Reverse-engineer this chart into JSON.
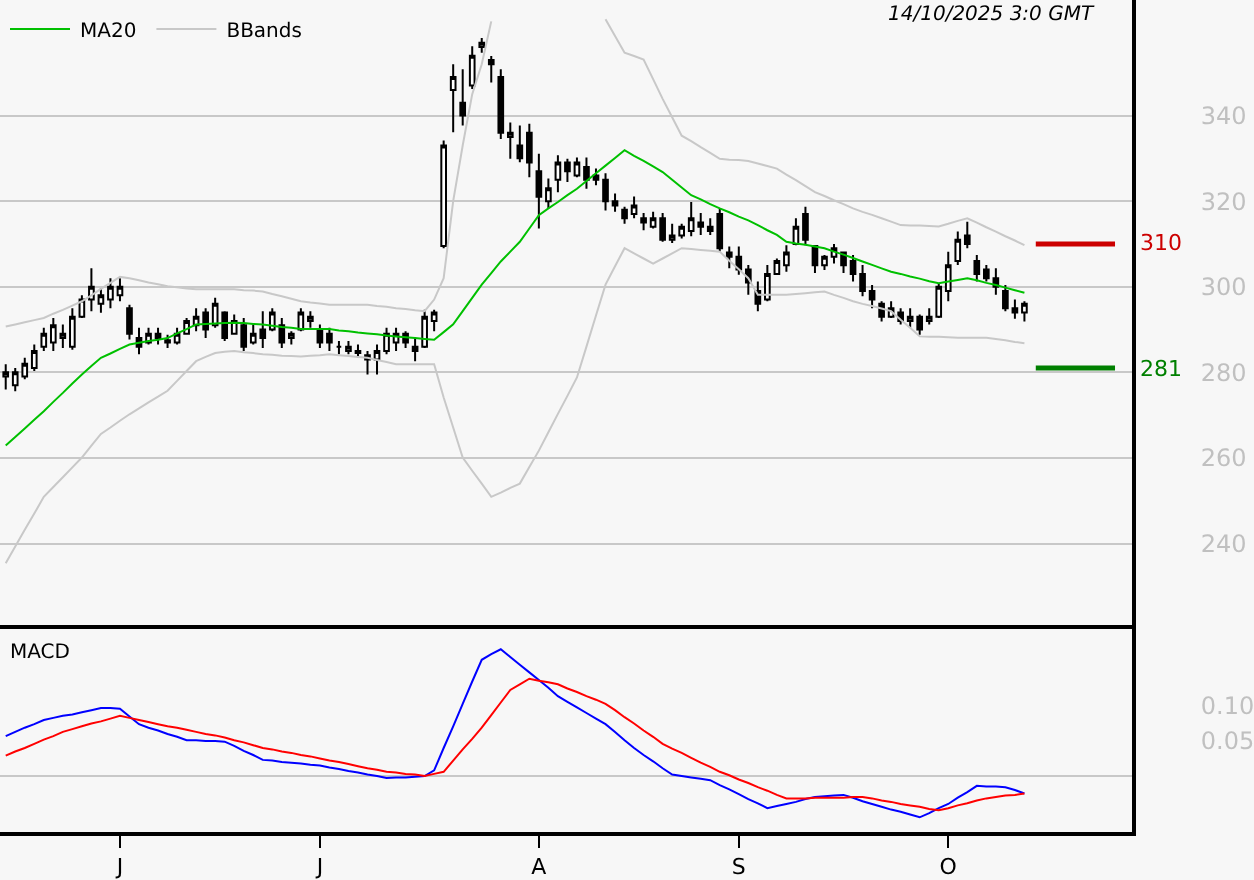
{
  "chart_data": [
    {
      "type": "candlestick",
      "color": "#000000",
      "categories": [
        null,
        null,
        null,
        null,
        null,
        null,
        null,
        null,
        null,
        null,
        null,
        null,
        null,
        null,
        null,
        null,
        null,
        null,
        null,
        null,
        null,
        null,
        null,
        null,
        null,
        null,
        null,
        null,
        null,
        null,
        null,
        null,
        null,
        null,
        null,
        null,
        null,
        null,
        null,
        null,
        null,
        null,
        null,
        null,
        null,
        null,
        null,
        null,
        null,
        null,
        null,
        null,
        null,
        null,
        null,
        null,
        null,
        null,
        null,
        null,
        null,
        null,
        null,
        null,
        null,
        null,
        null,
        null,
        null,
        null,
        null,
        null,
        null,
        null,
        null,
        null,
        null,
        null,
        null,
        null,
        null,
        null,
        null,
        null,
        null,
        null,
        null,
        null,
        null,
        null,
        null,
        null,
        null,
        null,
        null,
        null,
        null,
        null,
        null,
        null,
        null,
        null,
        null,
        null,
        null,
        null,
        null,
        null
      ],
      "ohlc": [
        [
          279,
          281.9,
          276,
          280
        ],
        [
          277,
          281,
          275.6,
          280
        ],
        [
          279,
          283.4,
          278.4,
          282
        ],
        [
          281,
          286.5,
          280.3,
          285
        ],
        [
          286,
          290.4,
          285,
          289
        ],
        [
          287,
          292.7,
          285,
          291
        ],
        [
          288,
          291.2,
          285.7,
          289
        ],
        [
          286,
          295,
          285.3,
          293
        ],
        [
          293,
          298,
          292.7,
          297
        ],
        [
          297,
          304.3,
          294.3,
          300
        ],
        [
          296,
          299.7,
          293.9,
          298
        ],
        [
          297,
          302,
          295,
          300
        ],
        [
          298,
          302,
          296.6,
          300
        ],
        [
          295,
          295.8,
          287.7,
          289
        ],
        [
          288,
          290.4,
          284.2,
          286
        ],
        [
          287,
          290.4,
          286.5,
          289
        ],
        [
          289,
          290.4,
          286.5,
          288
        ],
        [
          287,
          288.8,
          285.7,
          287.5
        ],
        [
          287,
          290.4,
          286.5,
          289
        ],
        [
          289,
          292.7,
          288.8,
          292
        ],
        [
          291,
          295,
          289.6,
          293
        ],
        [
          294,
          295,
          288,
          290
        ],
        [
          291,
          297.4,
          290.4,
          296
        ],
        [
          294,
          294.3,
          287.3,
          288
        ],
        [
          289,
          293.5,
          288.8,
          292
        ],
        [
          291,
          292.7,
          285,
          286
        ],
        [
          287,
          291.2,
          286.5,
          289
        ],
        [
          290,
          294.3,
          285.7,
          288
        ],
        [
          290,
          295,
          289.6,
          294
        ],
        [
          291,
          292.7,
          285.7,
          287
        ],
        [
          288,
          289.6,
          286.5,
          289
        ],
        [
          290,
          295,
          289.6,
          294
        ],
        [
          292,
          294.3,
          290.4,
          293
        ],
        [
          290,
          291.2,
          285.7,
          287
        ],
        [
          289,
          290.4,
          285,
          287
        ],
        [
          286,
          287.3,
          284.2,
          286
        ],
        [
          285,
          287.3,
          284.2,
          286
        ],
        [
          285,
          286.5,
          283.4,
          284.5
        ],
        [
          284,
          285,
          279.5,
          283
        ],
        [
          283,
          286.5,
          279.5,
          285
        ],
        [
          285,
          290.4,
          284.2,
          289
        ],
        [
          287,
          290.4,
          285,
          289
        ],
        [
          289,
          289.6,
          285.7,
          287
        ],
        [
          286,
          288,
          282.6,
          285
        ],
        [
          286,
          294.6,
          285.7,
          293
        ],
        [
          292,
          294.6,
          289.6,
          294
        ],
        [
          309.5,
          334.2,
          309,
          333
        ],
        [
          346,
          352,
          336.1,
          349
        ],
        [
          343,
          350.8,
          337.7,
          340
        ],
        [
          347,
          356.2,
          346.2,
          354
        ],
        [
          356,
          358.1,
          354.7,
          357
        ],
        [
          353,
          353.9,
          347.7,
          352
        ],
        [
          349,
          350.8,
          334.5,
          336
        ],
        [
          335,
          338.4,
          329.9,
          336
        ],
        [
          333,
          337.7,
          329.1,
          330
        ],
        [
          336,
          338.1,
          325.6,
          329
        ],
        [
          327,
          331.1,
          313.6,
          321
        ],
        [
          320,
          325.3,
          318.3,
          323
        ],
        [
          325,
          330.7,
          322.1,
          329
        ],
        [
          329,
          329.9,
          324.5,
          327
        ],
        [
          326,
          330.2,
          325.6,
          329
        ],
        [
          328,
          330.2,
          322.9,
          325
        ],
        [
          326,
          327.6,
          323.7,
          325
        ],
        [
          325,
          326.5,
          317.8,
          320
        ],
        [
          320,
          321.8,
          317.5,
          319
        ],
        [
          318,
          318.7,
          314.7,
          316
        ],
        [
          317,
          321.1,
          316,
          319
        ],
        [
          316,
          317.2,
          313.2,
          315
        ],
        [
          314,
          317.5,
          313.6,
          316
        ],
        [
          316,
          317.2,
          310.5,
          311
        ],
        [
          311,
          314.7,
          310.2,
          312
        ],
        [
          312,
          314.7,
          311.3,
          314
        ],
        [
          313,
          319.8,
          311.8,
          316
        ],
        [
          315,
          317.2,
          312.1,
          314
        ],
        [
          314,
          316,
          312.1,
          313
        ],
        [
          317,
          318.3,
          308.2,
          309
        ],
        [
          308,
          309.4,
          304.3,
          307
        ],
        [
          307,
          309.4,
          302.8,
          304
        ],
        [
          304,
          305.1,
          298.1,
          301
        ],
        [
          299,
          301.2,
          294.3,
          296
        ],
        [
          297,
          305.1,
          296.6,
          303
        ],
        [
          303,
          306.6,
          302.8,
          306
        ],
        [
          305,
          309.7,
          303.5,
          308
        ],
        [
          310,
          316,
          309.7,
          314
        ],
        [
          317,
          318.7,
          309.7,
          311
        ],
        [
          309.5,
          309.7,
          303.2,
          305
        ],
        [
          305,
          307.4,
          303.9,
          307
        ],
        [
          307,
          310,
          305.4,
          309
        ],
        [
          308,
          308.2,
          303.2,
          305
        ],
        [
          306,
          307.4,
          301.2,
          303
        ],
        [
          303,
          305.1,
          297.8,
          299
        ],
        [
          299,
          300.4,
          295,
          297
        ],
        [
          296,
          296.6,
          291.9,
          293
        ],
        [
          293,
          296.6,
          292.7,
          295
        ],
        [
          294,
          295,
          291.2,
          292
        ],
        [
          292,
          295,
          290.4,
          293
        ],
        [
          293,
          293.5,
          288.8,
          290
        ],
        [
          292,
          295,
          291.2,
          293
        ],
        [
          293,
          300.8,
          292.7,
          300
        ],
        [
          299,
          308.2,
          296.6,
          305
        ],
        [
          306,
          312.9,
          305.1,
          311
        ],
        [
          312,
          315.2,
          309,
          310
        ],
        [
          306,
          307.4,
          301.2,
          303
        ],
        [
          304,
          305.1,
          301.2,
          302
        ],
        [
          302,
          304.3,
          298.1,
          300
        ],
        [
          299,
          300.4,
          294.3,
          295
        ],
        [
          295,
          297,
          292.5,
          294
        ],
        [
          294,
          296.6,
          291.9,
          296
        ]
      ],
      "series": [
        {
          "type": "line",
          "name": "MA20",
          "color": "#00c000",
          "values": [
            262.9,
            264.9,
            266.9,
            268.9,
            270.9,
            273.1,
            275.2,
            277.4,
            279.5,
            281.5,
            283.4,
            284.4,
            285.5,
            286.5,
            286.9,
            287.3,
            287.6,
            288,
            289.1,
            290.1,
            291.2,
            291.3,
            291.4,
            291.5,
            291.6,
            291.5,
            291.3,
            291.2,
            290.9,
            290.6,
            290.4,
            290.1,
            290.1,
            290.1,
            290.1,
            289.8,
            289.6,
            289.3,
            289.1,
            288.9,
            288.6,
            288.4,
            288.2,
            288,
            287.8,
            287.6,
            289.4,
            291.2,
            294.3,
            297.4,
            300.5,
            303.2,
            305.9,
            308.2,
            310.5,
            313.6,
            316.7,
            318.3,
            319.8,
            321.4,
            322.9,
            324.7,
            326.5,
            328.3,
            330.1,
            331.9,
            330.6,
            329.4,
            328.1,
            326.8,
            325,
            323.2,
            321.4,
            320.4,
            319.3,
            318.3,
            317.4,
            316.4,
            315.5,
            314.4,
            313.2,
            312.1,
            310.5,
            310.1,
            309.8,
            309.4,
            309,
            308.2,
            307.5,
            306.7,
            305.9,
            305.1,
            304.3,
            303.5,
            303,
            302.4,
            301.9,
            301.3,
            300.8,
            301.2,
            301.6,
            302,
            301.5,
            300.9,
            300.4,
            299.8,
            299.2,
            298.6
          ]
        },
        {
          "type": "line",
          "name": "BBands",
          "color": "#c8c8c8",
          "values": [
            290.7,
            291.2,
            291.7,
            292.2,
            292.7,
            293.7,
            294.6,
            295.6,
            296.6,
            298,
            299.5,
            300.9,
            302.3,
            302,
            301.5,
            301,
            300.6,
            300.1,
            299.9,
            299.6,
            299.4,
            299.4,
            299.4,
            299.4,
            299.4,
            299.2,
            299.1,
            298.9,
            298.3,
            297.8,
            297.2,
            296.6,
            296.3,
            296.1,
            295.8,
            295.8,
            295.8,
            295.8,
            295.8,
            295.5,
            295.3,
            295,
            294.8,
            294.5,
            294.3,
            297,
            302,
            320,
            333,
            345,
            352,
            362,
            null,
            null,
            null,
            null,
            null,
            null,
            null,
            null,
            null,
            null,
            null,
            362.5,
            358.6,
            354.7,
            353.9,
            353.1,
            348.5,
            343.9,
            339.6,
            335.3,
            334,
            332.6,
            331.3,
            329.9,
            329.7,
            329.6,
            329.4,
            328.8,
            328.2,
            327.6,
            326.2,
            324.9,
            323.5,
            322.1,
            321.2,
            320.2,
            319.3,
            318.3,
            317.5,
            316.8,
            316,
            315.2,
            314.4,
            314.3,
            314.3,
            314.2,
            314.1,
            314.7,
            315.4,
            316,
            315,
            313.9,
            312.9,
            311.8,
            310.8,
            309.7
          ]
        },
        {
          "type": "line",
          "color": "#c8c8c8",
          "values": [
            235.4,
            239.3,
            243.2,
            247,
            250.9,
            253.2,
            255.5,
            257.8,
            260.1,
            262.9,
            265.6,
            267.1,
            268.7,
            270.2,
            271.6,
            273,
            274.3,
            275.7,
            278,
            280.3,
            282.6,
            283.6,
            284.5,
            284.8,
            285,
            284.7,
            284.5,
            284.2,
            284.1,
            283.9,
            283.8,
            283.7,
            283.9,
            284,
            284.2,
            284,
            283.8,
            283.6,
            283.4,
            282.9,
            282.4,
            281.9,
            281.9,
            281.9,
            281.9,
            281.9,
            274.1,
            267.1,
            260.1,
            257,
            254,
            250.9,
            251.9,
            253,
            254,
            257.9,
            261.7,
            266,
            270.3,
            274.5,
            278.8,
            286,
            293.3,
            300.5,
            304.8,
            309,
            307.8,
            306.6,
            305.4,
            306.6,
            307.8,
            309,
            308.8,
            308.6,
            308.4,
            308.2,
            306.1,
            304.1,
            302,
            298.1,
            298.1,
            298.1,
            298.1,
            298.3,
            298.5,
            298.7,
            298.9,
            298.1,
            297.4,
            296.6,
            296,
            295.5,
            294.9,
            294.3,
            292.3,
            290.4,
            288.4,
            288.3,
            288.3,
            288.2,
            288.1,
            288.1,
            288.1,
            288.1,
            287.8,
            287.5,
            287.1,
            286.8
          ]
        }
      ],
      "ylim": [
        221,
        367
      ],
      "yticks": [
        240,
        260,
        280,
        300,
        320,
        340
      ],
      "grid": "y",
      "tick_labels": "y",
      "legend": "top left",
      "ref_lines": [
        {
          "axis": "y",
          "value": 310,
          "label": "310",
          "color": "#cc0000"
        },
        {
          "axis": "y",
          "value": 281,
          "label": "281",
          "color": "#008000"
        }
      ],
      "annotations": [
        "14/10/2025 3:0 GMT"
      ]
    },
    {
      "type": "line",
      "title": "MACD",
      "categories": [
        null,
        null,
        null,
        null,
        null,
        null,
        null,
        null,
        null,
        null,
        null,
        null,
        "J",
        null,
        null,
        null,
        null,
        null,
        null,
        null,
        null,
        null,
        null,
        null,
        null,
        null,
        null,
        null,
        null,
        null,
        null,
        null,
        null,
        "J",
        null,
        null,
        null,
        null,
        null,
        null,
        null,
        null,
        null,
        null,
        null,
        null,
        null,
        null,
        null,
        null,
        null,
        null,
        null,
        null,
        null,
        null,
        "A",
        null,
        null,
        null,
        null,
        null,
        null,
        null,
        null,
        null,
        null,
        null,
        null,
        null,
        null,
        null,
        null,
        null,
        null,
        null,
        null,
        "S",
        null,
        null,
        null,
        null,
        null,
        null,
        null,
        null,
        null,
        null,
        null,
        null,
        null,
        null,
        null,
        null,
        null,
        null,
        null,
        null,
        null,
        "O",
        null,
        null,
        null,
        null,
        null,
        null,
        null,
        null
      ],
      "series": [
        {
          "color": "#0000ff",
          "values": [
            0.057,
            0.063,
            0.069,
            0.074,
            0.08,
            0.083,
            0.086,
            0.088,
            0.091,
            0.094,
            0.097,
            0.097,
            0.096,
            0.085,
            0.074,
            0.069,
            0.065,
            0.06,
            0.056,
            0.051,
            0.051,
            0.05,
            0.05,
            0.049,
            0.043,
            0.036,
            0.03,
            0.023,
            0.022,
            0.02,
            0.019,
            0.018,
            0.016,
            0.015,
            0.012,
            0.01,
            0.007,
            0.005,
            0.002,
            0,
            -0.003,
            -0.002,
            -0.002,
            -0.001,
            0,
            0.008,
            0.04,
            0.071,
            0.103,
            0.135,
            0.166,
            0.174,
            0.181,
            0.17,
            0.159,
            0.148,
            0.137,
            0.126,
            0.114,
            0.106,
            0.098,
            0.09,
            0.082,
            0.074,
            0.063,
            0.051,
            0.04,
            0.03,
            0.021,
            0.011,
            0.002,
            0,
            -0.002,
            -0.004,
            -0.006,
            -0.013,
            -0.019,
            -0.026,
            -0.033,
            -0.039,
            -0.046,
            -0.043,
            -0.04,
            -0.037,
            -0.033,
            -0.03,
            -0.029,
            -0.028,
            -0.027,
            -0.031,
            -0.036,
            -0.04,
            -0.044,
            -0.048,
            -0.051,
            -0.055,
            -0.059,
            -0.053,
            -0.046,
            -0.04,
            -0.031,
            -0.023,
            -0.014,
            -0.015,
            -0.015,
            -0.016,
            -0.02,
            -0.025
          ]
        },
        {
          "color": "#ff0000",
          "values": [
            0.029,
            0.035,
            0.04,
            0.046,
            0.052,
            0.057,
            0.063,
            0.067,
            0.071,
            0.075,
            0.078,
            0.082,
            0.086,
            0.083,
            0.08,
            0.077,
            0.074,
            0.071,
            0.069,
            0.066,
            0.063,
            0.06,
            0.058,
            0.055,
            0.051,
            0.048,
            0.044,
            0.04,
            0.038,
            0.035,
            0.033,
            0.03,
            0.028,
            0.025,
            0.022,
            0.02,
            0.017,
            0.014,
            0.011,
            0.009,
            0.006,
            0.005,
            0.003,
            0.002,
            0,
            0.003,
            0.006,
            0.022,
            0.038,
            0.053,
            0.069,
            0.087,
            0.105,
            0.123,
            0.131,
            0.139,
            0.136,
            0.134,
            0.131,
            0.125,
            0.12,
            0.114,
            0.109,
            0.103,
            0.094,
            0.084,
            0.075,
            0.065,
            0.056,
            0.046,
            0.039,
            0.033,
            0.026,
            0.019,
            0.013,
            0.006,
            0.001,
            -0.005,
            -0.01,
            -0.016,
            -0.021,
            -0.027,
            -0.032,
            -0.032,
            -0.032,
            -0.031,
            -0.031,
            -0.031,
            -0.031,
            -0.03,
            -0.03,
            -0.032,
            -0.035,
            -0.037,
            -0.04,
            -0.042,
            -0.044,
            -0.047,
            -0.049,
            -0.046,
            -0.042,
            -0.039,
            -0.035,
            -0.032,
            -0.03,
            -0.028,
            -0.027,
            -0.025
          ]
        }
      ],
      "ylim": [
        -0.08,
        0.21
      ],
      "yticks": [
        {
          "value": 0.05,
          "label": "0.05"
        },
        {
          "value": 0.1,
          "label": "0.10"
        }
      ],
      "ref_lines": [
        {
          "axis": "y",
          "value": 0,
          "color": "#c8c8c8"
        }
      ]
    }
  ]
}
